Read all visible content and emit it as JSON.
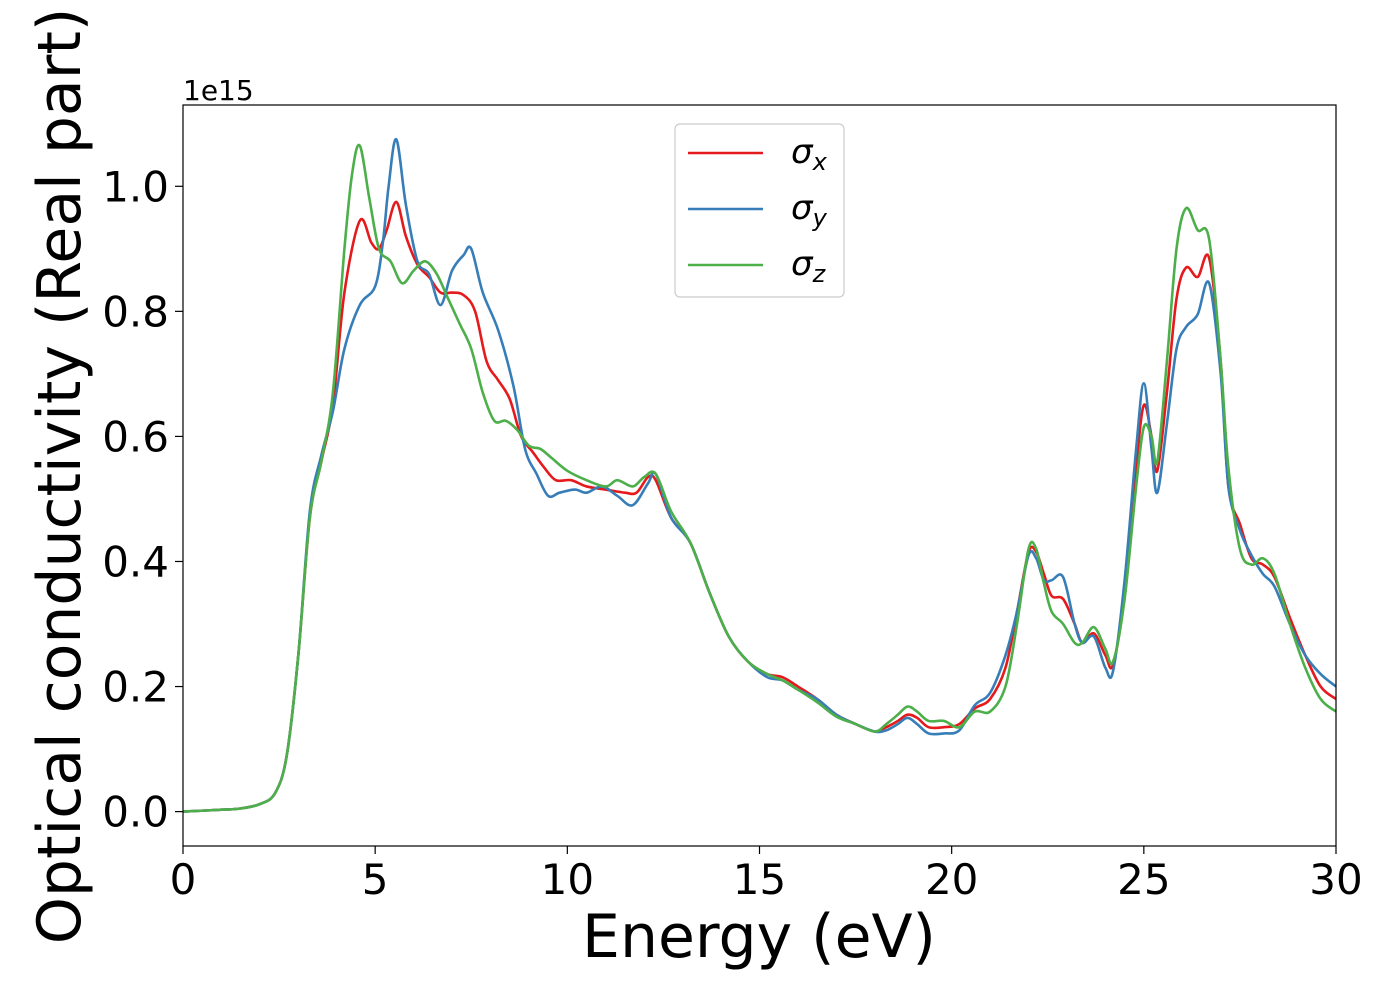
{
  "chart_data": {
    "type": "line",
    "xlabel": "Energy (eV)",
    "ylabel": "Optical conductivity (Real part)",
    "y_offset_label": "1e15",
    "xlim": [
      0,
      30
    ],
    "ylim": [
      -0.055,
      1.13
    ],
    "x_ticks": [
      0,
      5,
      10,
      15,
      20,
      25,
      30
    ],
    "x_tick_labels": [
      "0",
      "5",
      "10",
      "15",
      "20",
      "25",
      "30"
    ],
    "y_ticks": [
      0.0,
      0.2,
      0.4,
      0.6,
      0.8,
      1.0
    ],
    "y_tick_labels": [
      "0.0",
      "0.2",
      "0.4",
      "0.6",
      "0.8",
      "1.0"
    ],
    "grid": false,
    "legend_position": "top-center",
    "series": [
      {
        "name": "σx",
        "label_base": "σ",
        "label_sub": "x",
        "color": "#e41a1c",
        "points": [
          [
            0,
            0
          ],
          [
            1,
            0.003
          ],
          [
            1.5,
            0.005
          ],
          [
            2,
            0.012
          ],
          [
            2.4,
            0.03
          ],
          [
            2.7,
            0.09
          ],
          [
            3.0,
            0.25
          ],
          [
            3.3,
            0.47
          ],
          [
            3.6,
            0.56
          ],
          [
            3.9,
            0.65
          ],
          [
            4.2,
            0.83
          ],
          [
            4.6,
            0.945
          ],
          [
            4.9,
            0.91
          ],
          [
            5.1,
            0.9
          ],
          [
            5.3,
            0.93
          ],
          [
            5.55,
            0.975
          ],
          [
            5.8,
            0.92
          ],
          [
            6.1,
            0.875
          ],
          [
            6.4,
            0.855
          ],
          [
            6.7,
            0.83
          ],
          [
            7.0,
            0.83
          ],
          [
            7.3,
            0.826
          ],
          [
            7.6,
            0.8
          ],
          [
            7.9,
            0.72
          ],
          [
            8.2,
            0.69
          ],
          [
            8.5,
            0.66
          ],
          [
            8.8,
            0.6
          ],
          [
            9.1,
            0.575
          ],
          [
            9.4,
            0.55
          ],
          [
            9.7,
            0.53
          ],
          [
            10.1,
            0.53
          ],
          [
            10.5,
            0.52
          ],
          [
            11.0,
            0.515
          ],
          [
            11.5,
            0.51
          ],
          [
            11.8,
            0.51
          ],
          [
            12.1,
            0.535
          ],
          [
            12.3,
            0.53
          ],
          [
            12.7,
            0.47
          ],
          [
            13.2,
            0.43
          ],
          [
            13.7,
            0.35
          ],
          [
            14.2,
            0.28
          ],
          [
            14.7,
            0.24
          ],
          [
            15.2,
            0.22
          ],
          [
            15.6,
            0.215
          ],
          [
            16.0,
            0.2
          ],
          [
            16.5,
            0.18
          ],
          [
            17.0,
            0.155
          ],
          [
            17.5,
            0.14
          ],
          [
            18.0,
            0.128
          ],
          [
            18.3,
            0.135
          ],
          [
            18.6,
            0.145
          ],
          [
            18.85,
            0.155
          ],
          [
            19.1,
            0.15
          ],
          [
            19.4,
            0.135
          ],
          [
            19.8,
            0.135
          ],
          [
            20.2,
            0.14
          ],
          [
            20.6,
            0.165
          ],
          [
            21.0,
            0.18
          ],
          [
            21.4,
            0.23
          ],
          [
            21.7,
            0.32
          ],
          [
            22.0,
            0.415
          ],
          [
            22.2,
            0.415
          ],
          [
            22.4,
            0.38
          ],
          [
            22.6,
            0.345
          ],
          [
            22.9,
            0.34
          ],
          [
            23.2,
            0.3
          ],
          [
            23.4,
            0.27
          ],
          [
            23.7,
            0.285
          ],
          [
            24.0,
            0.25
          ],
          [
            24.2,
            0.235
          ],
          [
            24.5,
            0.35
          ],
          [
            24.8,
            0.55
          ],
          [
            25.0,
            0.65
          ],
          [
            25.2,
            0.6
          ],
          [
            25.35,
            0.545
          ],
          [
            25.6,
            0.67
          ],
          [
            25.85,
            0.82
          ],
          [
            26.1,
            0.87
          ],
          [
            26.4,
            0.855
          ],
          [
            26.7,
            0.885
          ],
          [
            27.0,
            0.72
          ],
          [
            27.2,
            0.52
          ],
          [
            27.5,
            0.46
          ],
          [
            27.8,
            0.405
          ],
          [
            28.1,
            0.395
          ],
          [
            28.4,
            0.375
          ],
          [
            28.8,
            0.31
          ],
          [
            29.2,
            0.25
          ],
          [
            29.6,
            0.2
          ],
          [
            30.0,
            0.18
          ]
        ]
      },
      {
        "name": "σy",
        "label_base": "σ",
        "label_sub": "y",
        "color": "#377eb8",
        "points": [
          [
            0,
            0
          ],
          [
            1,
            0.003
          ],
          [
            1.5,
            0.005
          ],
          [
            2,
            0.012
          ],
          [
            2.4,
            0.03
          ],
          [
            2.7,
            0.09
          ],
          [
            3.0,
            0.25
          ],
          [
            3.3,
            0.48
          ],
          [
            3.6,
            0.57
          ],
          [
            3.9,
            0.64
          ],
          [
            4.2,
            0.74
          ],
          [
            4.6,
            0.81
          ],
          [
            5.0,
            0.84
          ],
          [
            5.2,
            0.91
          ],
          [
            5.35,
            1.0
          ],
          [
            5.55,
            1.075
          ],
          [
            5.8,
            0.97
          ],
          [
            6.1,
            0.88
          ],
          [
            6.4,
            0.86
          ],
          [
            6.7,
            0.81
          ],
          [
            7.0,
            0.865
          ],
          [
            7.3,
            0.89
          ],
          [
            7.5,
            0.9
          ],
          [
            7.8,
            0.83
          ],
          [
            8.2,
            0.77
          ],
          [
            8.6,
            0.68
          ],
          [
            8.9,
            0.58
          ],
          [
            9.2,
            0.54
          ],
          [
            9.5,
            0.505
          ],
          [
            9.8,
            0.51
          ],
          [
            10.2,
            0.515
          ],
          [
            10.5,
            0.51
          ],
          [
            10.9,
            0.52
          ],
          [
            11.3,
            0.505
          ],
          [
            11.7,
            0.49
          ],
          [
            12.1,
            0.525
          ],
          [
            12.3,
            0.54
          ],
          [
            12.7,
            0.47
          ],
          [
            13.2,
            0.43
          ],
          [
            13.7,
            0.35
          ],
          [
            14.2,
            0.28
          ],
          [
            14.7,
            0.24
          ],
          [
            15.2,
            0.215
          ],
          [
            15.6,
            0.21
          ],
          [
            16.0,
            0.195
          ],
          [
            16.5,
            0.18
          ],
          [
            17.0,
            0.155
          ],
          [
            17.5,
            0.14
          ],
          [
            18.0,
            0.128
          ],
          [
            18.3,
            0.13
          ],
          [
            18.6,
            0.14
          ],
          [
            18.85,
            0.15
          ],
          [
            19.1,
            0.14
          ],
          [
            19.4,
            0.125
          ],
          [
            19.8,
            0.125
          ],
          [
            20.2,
            0.13
          ],
          [
            20.6,
            0.17
          ],
          [
            21.0,
            0.19
          ],
          [
            21.4,
            0.25
          ],
          [
            21.7,
            0.32
          ],
          [
            22.0,
            0.41
          ],
          [
            22.2,
            0.405
          ],
          [
            22.4,
            0.37
          ],
          [
            22.6,
            0.37
          ],
          [
            22.9,
            0.375
          ],
          [
            23.2,
            0.3
          ],
          [
            23.4,
            0.27
          ],
          [
            23.7,
            0.28
          ],
          [
            24.0,
            0.23
          ],
          [
            24.2,
            0.225
          ],
          [
            24.5,
            0.37
          ],
          [
            24.8,
            0.58
          ],
          [
            25.0,
            0.685
          ],
          [
            25.2,
            0.58
          ],
          [
            25.35,
            0.51
          ],
          [
            25.6,
            0.62
          ],
          [
            25.85,
            0.74
          ],
          [
            26.1,
            0.775
          ],
          [
            26.4,
            0.795
          ],
          [
            26.7,
            0.845
          ],
          [
            27.0,
            0.7
          ],
          [
            27.2,
            0.52
          ],
          [
            27.5,
            0.45
          ],
          [
            27.8,
            0.41
          ],
          [
            28.1,
            0.38
          ],
          [
            28.4,
            0.36
          ],
          [
            28.8,
            0.3
          ],
          [
            29.2,
            0.25
          ],
          [
            29.6,
            0.22
          ],
          [
            30.0,
            0.2
          ]
        ]
      },
      {
        "name": "σz",
        "label_base": "σ",
        "label_sub": "z",
        "color": "#4daf4a",
        "points": [
          [
            0,
            0
          ],
          [
            1,
            0.003
          ],
          [
            1.5,
            0.005
          ],
          [
            2,
            0.012
          ],
          [
            2.4,
            0.03
          ],
          [
            2.7,
            0.09
          ],
          [
            3.0,
            0.25
          ],
          [
            3.3,
            0.47
          ],
          [
            3.6,
            0.56
          ],
          [
            3.9,
            0.67
          ],
          [
            4.2,
            0.9
          ],
          [
            4.4,
            1.02
          ],
          [
            4.6,
            1.065
          ],
          [
            4.85,
            0.98
          ],
          [
            5.1,
            0.9
          ],
          [
            5.4,
            0.88
          ],
          [
            5.7,
            0.845
          ],
          [
            6.0,
            0.865
          ],
          [
            6.3,
            0.88
          ],
          [
            6.6,
            0.86
          ],
          [
            6.9,
            0.82
          ],
          [
            7.2,
            0.78
          ],
          [
            7.5,
            0.74
          ],
          [
            7.8,
            0.67
          ],
          [
            8.1,
            0.625
          ],
          [
            8.4,
            0.625
          ],
          [
            8.7,
            0.61
          ],
          [
            9.0,
            0.585
          ],
          [
            9.3,
            0.58
          ],
          [
            9.6,
            0.565
          ],
          [
            10.0,
            0.545
          ],
          [
            10.5,
            0.53
          ],
          [
            11.0,
            0.52
          ],
          [
            11.3,
            0.53
          ],
          [
            11.7,
            0.52
          ],
          [
            12.0,
            0.535
          ],
          [
            12.3,
            0.54
          ],
          [
            12.7,
            0.48
          ],
          [
            13.2,
            0.43
          ],
          [
            13.7,
            0.35
          ],
          [
            14.2,
            0.28
          ],
          [
            14.7,
            0.24
          ],
          [
            15.2,
            0.22
          ],
          [
            15.6,
            0.21
          ],
          [
            16.0,
            0.195
          ],
          [
            16.5,
            0.175
          ],
          [
            17.0,
            0.152
          ],
          [
            17.5,
            0.14
          ],
          [
            18.0,
            0.128
          ],
          [
            18.3,
            0.14
          ],
          [
            18.6,
            0.155
          ],
          [
            18.85,
            0.168
          ],
          [
            19.1,
            0.16
          ],
          [
            19.4,
            0.145
          ],
          [
            19.8,
            0.145
          ],
          [
            20.2,
            0.135
          ],
          [
            20.6,
            0.16
          ],
          [
            21.0,
            0.16
          ],
          [
            21.4,
            0.2
          ],
          [
            21.7,
            0.3
          ],
          [
            22.0,
            0.42
          ],
          [
            22.2,
            0.42
          ],
          [
            22.4,
            0.365
          ],
          [
            22.6,
            0.32
          ],
          [
            22.9,
            0.3
          ],
          [
            23.2,
            0.27
          ],
          [
            23.4,
            0.27
          ],
          [
            23.7,
            0.295
          ],
          [
            24.0,
            0.26
          ],
          [
            24.2,
            0.24
          ],
          [
            24.5,
            0.34
          ],
          [
            24.8,
            0.52
          ],
          [
            25.0,
            0.615
          ],
          [
            25.2,
            0.6
          ],
          [
            25.35,
            0.56
          ],
          [
            25.6,
            0.72
          ],
          [
            25.85,
            0.9
          ],
          [
            26.1,
            0.965
          ],
          [
            26.4,
            0.93
          ],
          [
            26.7,
            0.915
          ],
          [
            27.0,
            0.72
          ],
          [
            27.2,
            0.55
          ],
          [
            27.5,
            0.42
          ],
          [
            27.8,
            0.395
          ],
          [
            28.1,
            0.405
          ],
          [
            28.4,
            0.38
          ],
          [
            28.8,
            0.3
          ],
          [
            29.2,
            0.23
          ],
          [
            29.6,
            0.18
          ],
          [
            30.0,
            0.16
          ]
        ]
      }
    ]
  }
}
